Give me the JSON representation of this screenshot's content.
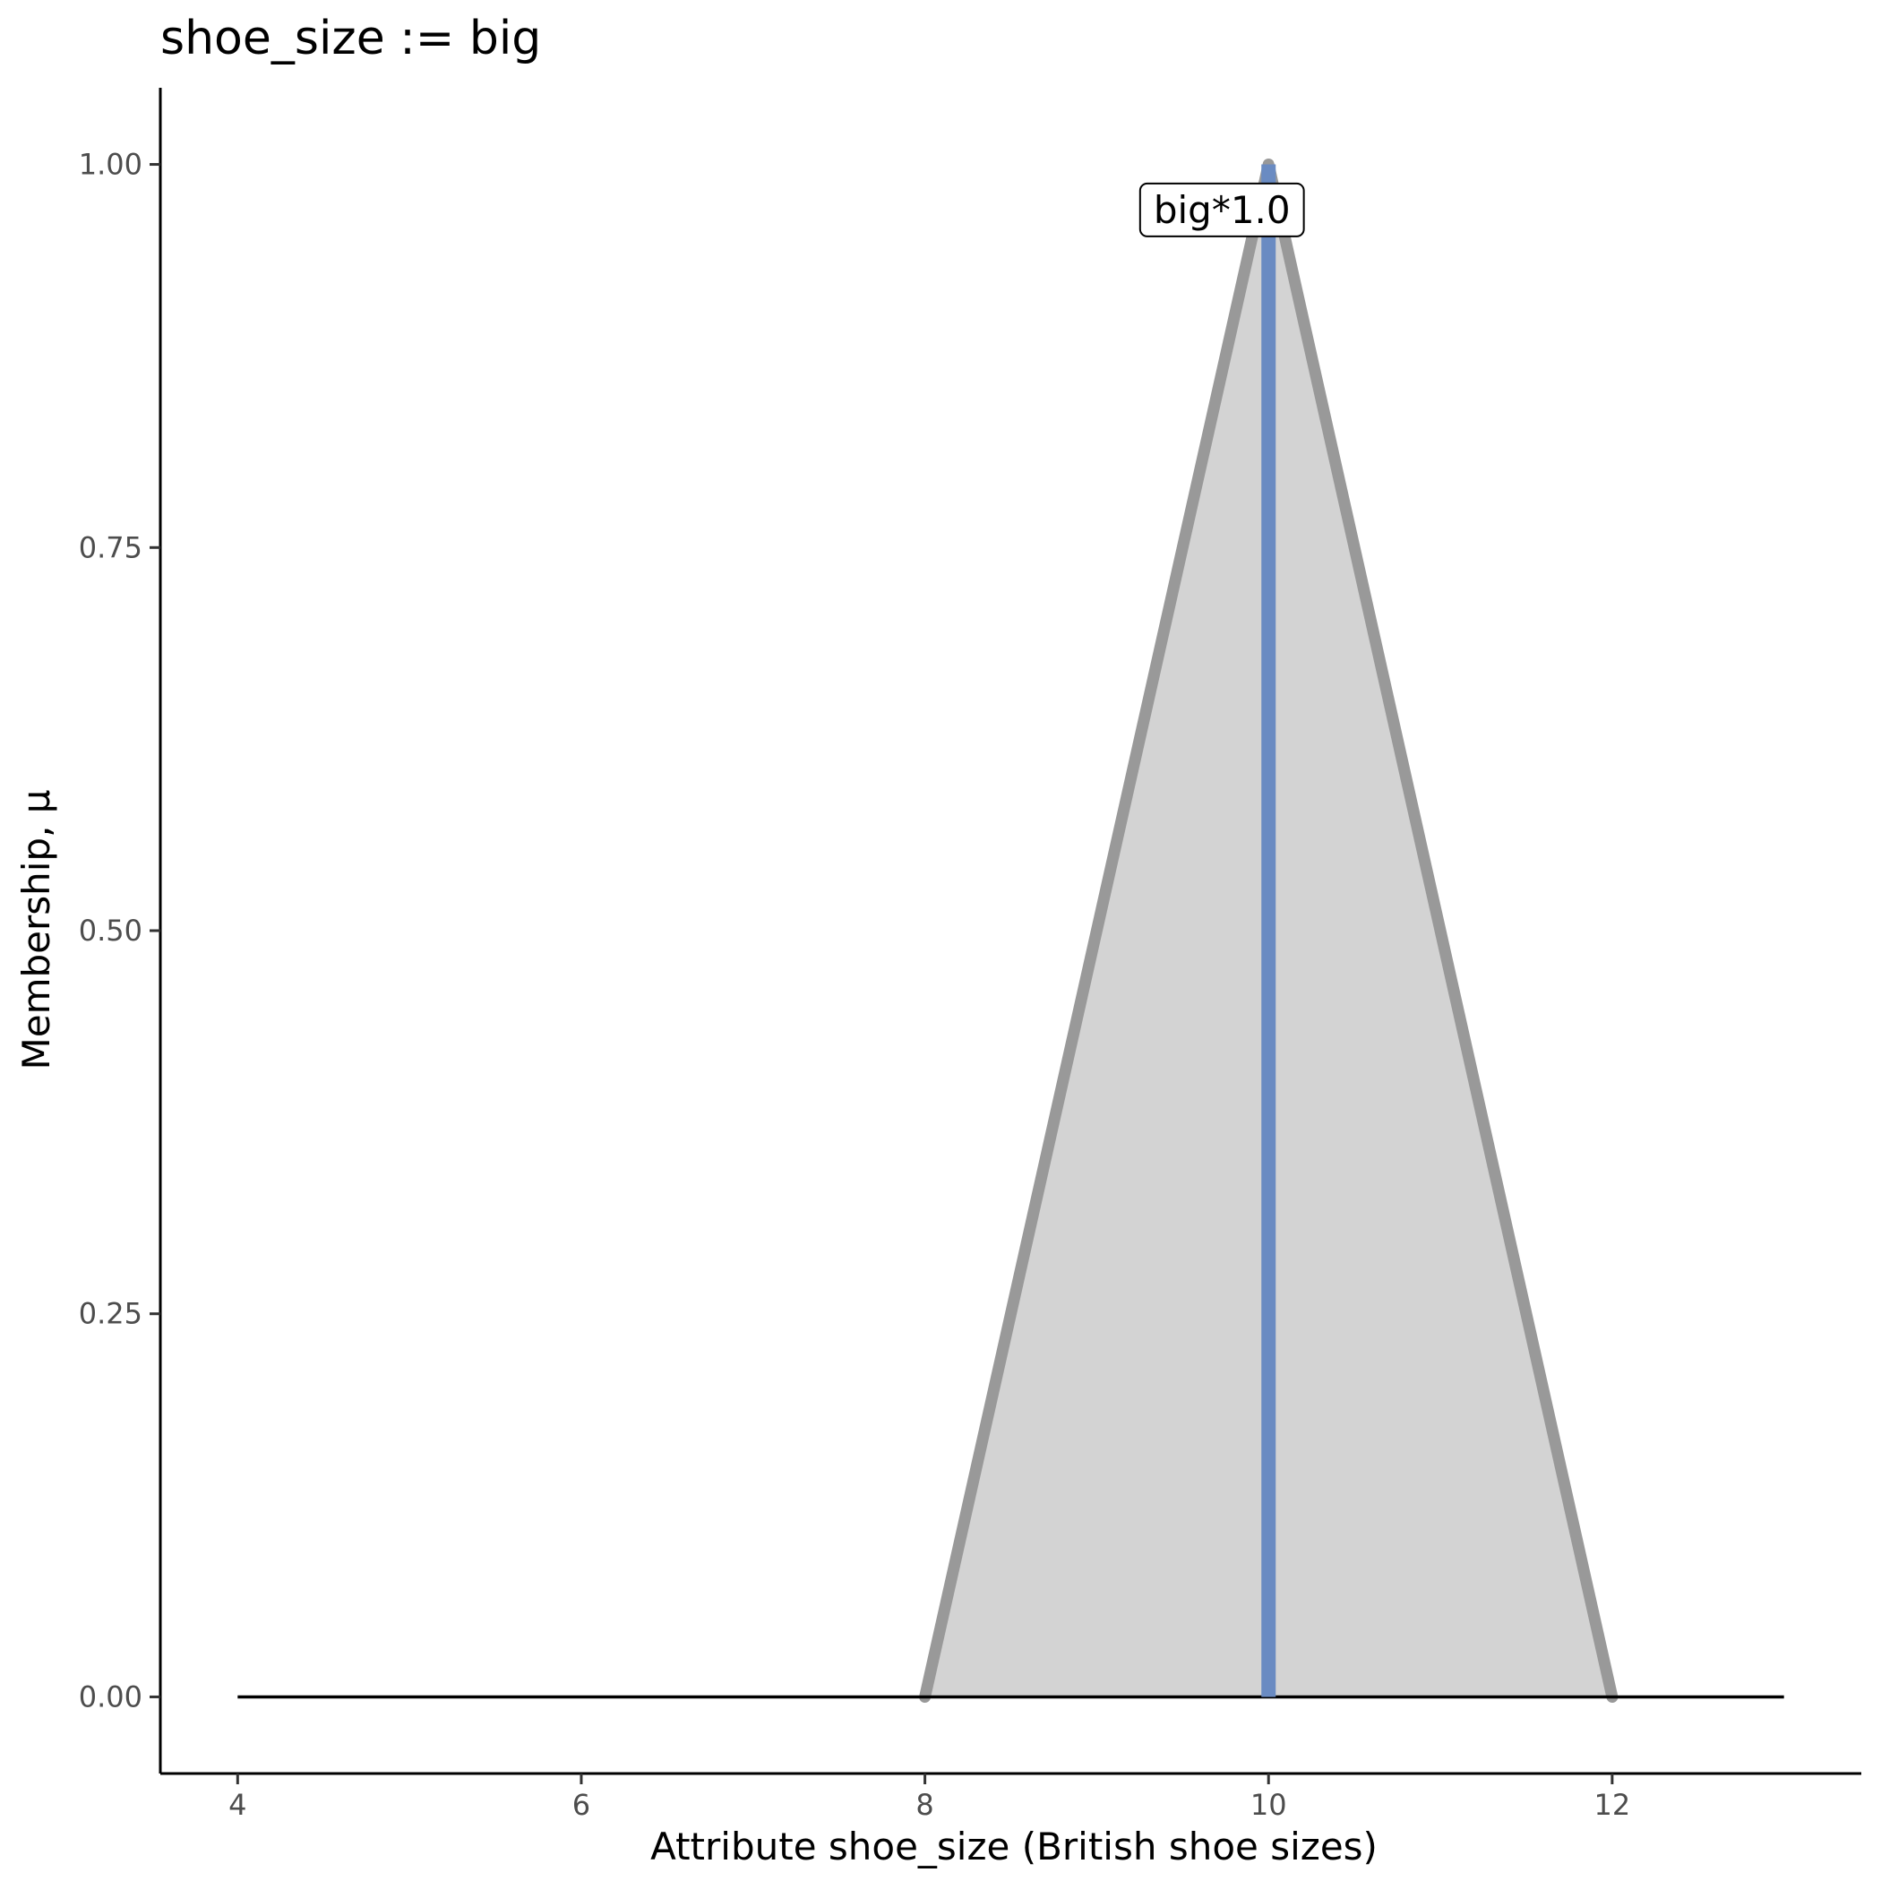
{
  "chart_data": {
    "type": "area",
    "title": "shoe_size := big",
    "xlabel": "Attribute shoe_size (British shoe sizes)",
    "ylabel": "Membership, μ",
    "xlim": [
      3.55,
      13.45
    ],
    "ylim": [
      -0.05,
      1.05
    ],
    "x_ticks": [
      4,
      6,
      8,
      10,
      12
    ],
    "x_tick_labels": [
      "4",
      "6",
      "8",
      "10",
      "12"
    ],
    "y_ticks": [
      0,
      0.25,
      0.5,
      0.75,
      1
    ],
    "y_tick_labels": [
      "0.00",
      "0.25",
      "0.50",
      "0.75",
      "1.00"
    ],
    "grid": false,
    "baseline": {
      "x": [
        4,
        13
      ],
      "y": [
        0,
        0
      ]
    },
    "series": [
      {
        "x": [
          8,
          10,
          12
        ],
        "y": [
          0,
          1,
          0
        ],
        "fill_color": "#d3d3d3",
        "line_color": "#999999"
      }
    ],
    "reference_line": {
      "x": 10,
      "y": [
        0,
        1
      ],
      "color": "#6a8bc2"
    },
    "annotation": {
      "text": "big*1.0",
      "x": 10,
      "y": 0.97
    },
    "colors": {
      "axis": "#000000",
      "tick_label": "#4d4d4d",
      "background": "#ffffff"
    }
  }
}
